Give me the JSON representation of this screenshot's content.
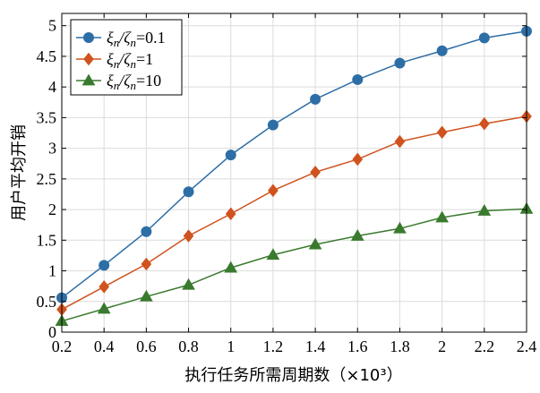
{
  "chart_data": {
    "type": "line",
    "title": "",
    "xlabel": "执行任务所需周期数（×10³）",
    "ylabel": "用户平均开销",
    "x": [
      0.2,
      0.4,
      0.6,
      0.8,
      1.0,
      1.2,
      1.4,
      1.6,
      1.8,
      2.0,
      2.2,
      2.4
    ],
    "xlim": [
      0.2,
      2.4
    ],
    "ylim": [
      0,
      5.2
    ],
    "xticks": [
      0.2,
      0.4,
      0.6,
      0.8,
      1,
      1.2,
      1.4,
      1.6,
      1.8,
      2,
      2.2,
      2.4
    ],
    "xtick_labels": [
      "0.2",
      "0.4",
      "0.6",
      "0.8",
      "1",
      "1.2",
      "1.4",
      "1.6",
      "1.8",
      "2",
      "2.2",
      "2.4"
    ],
    "yticks": [
      0,
      0.5,
      1,
      1.5,
      2,
      2.5,
      3,
      3.5,
      4,
      4.5,
      5
    ],
    "ytick_labels": [
      "0",
      "0.5",
      "1",
      "1.5",
      "2",
      "2.5",
      "3",
      "3.5",
      "4",
      "4.5",
      "5"
    ],
    "grid": true,
    "legend_position": "top-left",
    "series": [
      {
        "name": "ξn/ζn=0.1",
        "legend_parts": [
          "ξ",
          "n",
          "/ζ",
          "n",
          "=0.1"
        ],
        "color": "#2e6ea6",
        "marker": "circle",
        "values": [
          0.56,
          1.09,
          1.64,
          2.29,
          2.89,
          3.38,
          3.8,
          4.12,
          4.39,
          4.59,
          4.8,
          4.91
        ]
      },
      {
        "name": "ξn/ζn=1",
        "legend_parts": [
          "ξ",
          "n",
          "/ζ",
          "n",
          "=1"
        ],
        "color": "#d0531f",
        "marker": "diamond",
        "values": [
          0.37,
          0.74,
          1.11,
          1.57,
          1.93,
          2.31,
          2.61,
          2.82,
          3.11,
          3.26,
          3.4,
          3.52
        ]
      },
      {
        "name": "ξn/ζn=10",
        "legend_parts": [
          "ξ",
          "n",
          "/ζ",
          "n",
          "=10"
        ],
        "color": "#3a7a2e",
        "marker": "triangle",
        "values": [
          0.18,
          0.38,
          0.58,
          0.77,
          1.05,
          1.26,
          1.43,
          1.57,
          1.69,
          1.87,
          1.98,
          2.01
        ]
      }
    ]
  }
}
